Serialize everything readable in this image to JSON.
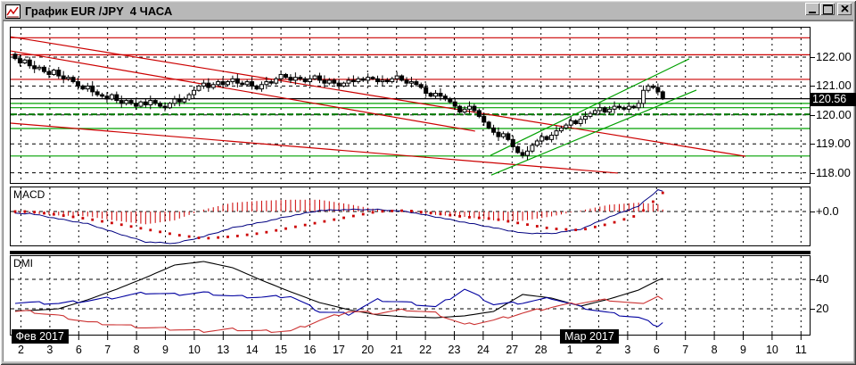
{
  "window": {
    "title": "График EUR /JPY  4 ЧАСА",
    "icon": "line-chart-icon",
    "buttons": [
      {
        "name": "minimize"
      },
      {
        "name": "maximize"
      },
      {
        "name": "close"
      }
    ]
  },
  "chart_data": {
    "type": "candlestick",
    "instrument": "EUR/JPY",
    "timeframe": "4 ЧАСА",
    "x_axis": {
      "day_labels": [
        "2",
        "3",
        "6",
        "7",
        "8",
        "9",
        "10",
        "13",
        "14",
        "15",
        "16",
        "17",
        "20",
        "21",
        "22",
        "23",
        "24",
        "27",
        "28",
        "1",
        "2",
        "3",
        "6",
        "7",
        "8",
        "9",
        "10",
        "11"
      ],
      "month_markers": [
        {
          "label": "Фев 2017",
          "day_index": 0
        },
        {
          "label": "Мар 2017",
          "day_index": 19
        }
      ]
    },
    "price_axis": {
      "tick_labels": [
        "122.00",
        "121.00",
        "120.00",
        "119.00",
        "118.00"
      ],
      "tick_prices": [
        122,
        121,
        120,
        119,
        118
      ],
      "current_price": 120.56,
      "current_price_label": "120.56",
      "ylim": [
        117.6,
        123.05
      ]
    },
    "candles_per_day": 6,
    "first_open": 122.1,
    "closes": [
      121.95,
      121.8,
      121.9,
      121.7,
      121.6,
      121.65,
      121.5,
      121.4,
      121.55,
      121.35,
      121.25,
      121.3,
      121.15,
      121.0,
      120.9,
      121.0,
      120.8,
      120.7,
      120.65,
      120.55,
      120.7,
      120.5,
      120.4,
      120.5,
      120.4,
      120.3,
      120.45,
      120.35,
      120.5,
      120.4,
      120.3,
      120.25,
      120.4,
      120.55,
      120.45,
      120.55,
      120.7,
      120.85,
      121.0,
      121.1,
      120.95,
      121.05,
      121.15,
      121.05,
      121.15,
      121.25,
      121.1,
      121.05,
      121.15,
      121.0,
      120.9,
      121.05,
      121.15,
      121.1,
      121.25,
      121.4,
      121.3,
      121.2,
      121.3,
      121.25,
      121.15,
      121.25,
      121.35,
      121.2,
      121.1,
      121.2,
      121.1,
      121.0,
      121.1,
      121.2,
      121.15,
      121.25,
      121.2,
      121.3,
      121.25,
      121.15,
      121.2,
      121.15,
      121.25,
      121.35,
      121.2,
      121.1,
      121.15,
      121.05,
      120.95,
      120.75,
      120.65,
      120.75,
      120.65,
      120.55,
      120.45,
      120.3,
      120.1,
      120.2,
      120.3,
      120.15,
      119.95,
      119.75,
      119.55,
      119.4,
      119.25,
      119.35,
      119.15,
      118.9,
      118.7,
      118.6,
      118.75,
      118.95,
      119.1,
      119.25,
      119.15,
      119.3,
      119.45,
      119.55,
      119.65,
      119.8,
      119.7,
      119.85,
      119.95,
      120.05,
      120.15,
      120.25,
      120.1,
      120.2,
      120.3,
      120.25,
      120.2,
      120.3,
      120.25,
      120.4,
      120.85,
      121.0,
      120.95,
      120.8,
      120.56
    ],
    "wick_pattern": [
      0.07,
      0.14,
      0.05,
      0.11,
      0.17,
      0.08
    ],
    "overlays": {
      "horizontal_lines": [
        {
          "price": 122.67,
          "color": "#cc0000",
          "style": "solid"
        },
        {
          "price": 122.08,
          "color": "#cc0000",
          "style": "solid"
        },
        {
          "price": 121.23,
          "color": "#cc0000",
          "style": "solid"
        },
        {
          "price": 120.4,
          "color": "#00a000",
          "style": "solid"
        },
        {
          "price": 120.25,
          "color": "#00a000",
          "style": "solid"
        },
        {
          "price": 120.02,
          "color": "#007800",
          "style": "dashed-bold"
        },
        {
          "price": 119.53,
          "color": "#00a000",
          "style": "solid"
        },
        {
          "price": 118.58,
          "color": "#00a000",
          "style": "solid"
        },
        {
          "price": 120.56,
          "color": "#000000",
          "style": "solid"
        }
      ],
      "trend_lines": [
        {
          "day_from": -0.39,
          "price_from": 122.71,
          "day_to": 25.08,
          "price_to": 118.57,
          "color": "#cc0000"
        },
        {
          "day_from": -0.39,
          "price_from": 122.22,
          "day_to": 15.72,
          "price_to": 119.44,
          "color": "#cc0000"
        },
        {
          "day_from": -0.39,
          "price_from": 119.72,
          "day_to": 20.66,
          "price_to": 117.99,
          "color": "#cc0000"
        },
        {
          "day_from": 16.25,
          "price_from": 118.6,
          "day_to": 23.13,
          "price_to": 121.94,
          "color": "#00a000"
        },
        {
          "day_from": 16.28,
          "price_from": 117.92,
          "day_to": 23.38,
          "price_to": 120.86,
          "color": "#00a000"
        }
      ]
    },
    "macd": {
      "label": "MACD",
      "zero_label": "+0.0",
      "line_color": "#000080",
      "signal_color": "#cc0000",
      "histogram_color": "#cc0000",
      "day_values": [
        -0.04,
        -0.15,
        -0.25,
        -0.44,
        -0.62,
        -0.65,
        -0.51,
        -0.33,
        -0.22,
        -0.09,
        0.02,
        0.04,
        0.04,
        0.0,
        -0.11,
        -0.22,
        -0.33,
        -0.44,
        -0.45,
        -0.36,
        -0.11,
        0.11,
        0.44
      ],
      "end_value": 0.42,
      "signal_day_values": [
        0.0,
        -0.07,
        -0.15,
        -0.25,
        -0.36,
        -0.47,
        -0.55,
        -0.51,
        -0.44,
        -0.33,
        -0.22,
        -0.11,
        0.0,
        0.02,
        -0.04,
        -0.11,
        -0.15,
        -0.25,
        -0.35,
        -0.38,
        -0.25,
        -0.07,
        0.29
      ],
      "signal_end_value": 0.38
    },
    "dmi": {
      "label": "DMI",
      "scale_labels": [
        "40",
        "20"
      ],
      "scale_values": [
        40,
        20
      ],
      "adx": {
        "color": "#000000",
        "day_values": [
          18.8,
          20.0,
          26.1,
          33.3,
          41.2,
          49.7,
          52.1,
          47.9,
          39.4,
          31.5,
          24.2,
          19.4,
          15.8,
          14.5,
          13.9,
          15.2,
          18.2,
          29.7,
          27.3,
          21.8,
          26.7,
          32.7,
          39.4
        ],
        "end_value": 40.6
      },
      "plus_di": {
        "color": "#0000a0",
        "day_values": [
          24.2,
          23.6,
          25.5,
          27.9,
          30.9,
          29.7,
          30.9,
          28.5,
          27.9,
          28.5,
          18.2,
          16.4,
          26.1,
          24.2,
          21.2,
          33.3,
          23.0,
          24.2,
          27.3,
          21.2,
          17.0,
          13.9,
          8.5
        ],
        "end_value": 10.9
      },
      "minus_di": {
        "color": "#cc3333",
        "day_values": [
          18.2,
          15.2,
          10.9,
          9.1,
          7.3,
          6.1,
          4.8,
          6.1,
          4.8,
          4.8,
          12.1,
          18.2,
          17.0,
          19.4,
          17.0,
          9.1,
          12.1,
          17.0,
          21.2,
          24.2,
          26.1,
          23.0,
          28.5
        ],
        "end_value": 26.1
      }
    }
  }
}
